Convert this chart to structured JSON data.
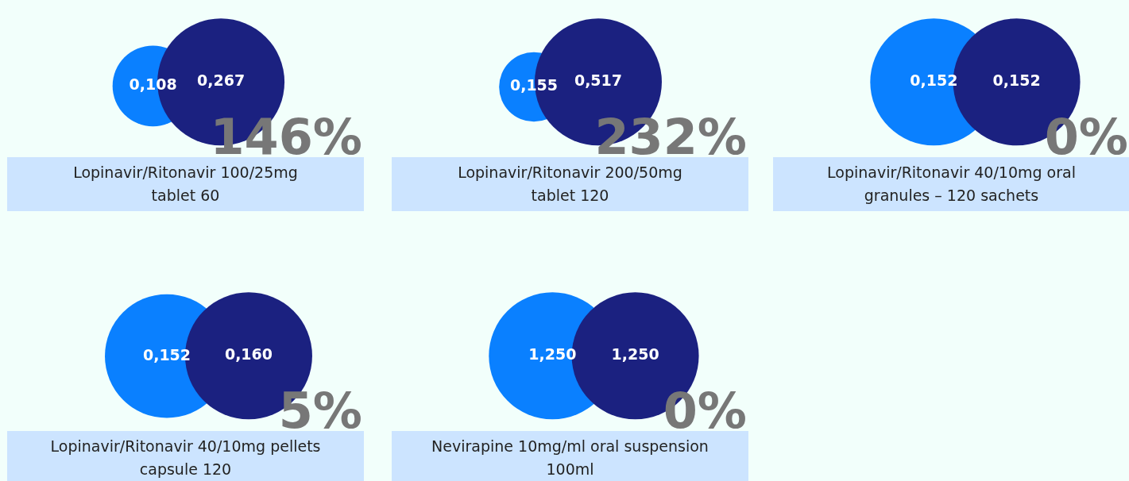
{
  "chart_data": [
    {
      "type": "other",
      "title": "Lopinavir/Ritonavir 100/25mg\ntablet 60",
      "categories": [
        null,
        null
      ],
      "values": [
        0.108,
        0.267
      ],
      "value_labels": [
        "0,108",
        "0,267"
      ],
      "colors": [
        "#0a80ff",
        "#1b2180"
      ],
      "annotations": [
        "146%"
      ]
    },
    {
      "type": "other",
      "title": "Lopinavir/Ritonavir 200/50mg\ntablet 120",
      "categories": [
        null,
        null
      ],
      "values": [
        0.155,
        0.517
      ],
      "value_labels": [
        "0,155",
        "0,517"
      ],
      "colors": [
        "#0a80ff",
        "#1b2180"
      ],
      "annotations": [
        "232%"
      ]
    },
    {
      "type": "other",
      "title": "Lopinavir/Ritonavir 40/10mg oral\ngranules – 120 sachets",
      "categories": [
        null,
        null
      ],
      "values": [
        0.152,
        0.152
      ],
      "value_labels": [
        "0,152",
        "0,152"
      ],
      "colors": [
        "#0a80ff",
        "#1b2180"
      ],
      "annotations": [
        "0%"
      ]
    },
    {
      "type": "other",
      "title": "Lopinavir/Ritonavir 40/10mg pellets\ncapsule 120",
      "categories": [
        null,
        null
      ],
      "values": [
        0.152,
        0.16
      ],
      "value_labels": [
        "0,152",
        "0,160"
      ],
      "colors": [
        "#0a80ff",
        "#1b2180"
      ],
      "annotations": [
        "5%"
      ]
    },
    {
      "type": "other",
      "title": "Nevirapine 10mg/ml oral suspension\n100ml",
      "categories": [
        null,
        null
      ],
      "values": [
        1.25,
        1.25
      ],
      "value_labels": [
        "1,250",
        "1,250"
      ],
      "colors": [
        "#0a80ff",
        "#1b2180"
      ],
      "annotations": [
        "0%"
      ]
    }
  ]
}
